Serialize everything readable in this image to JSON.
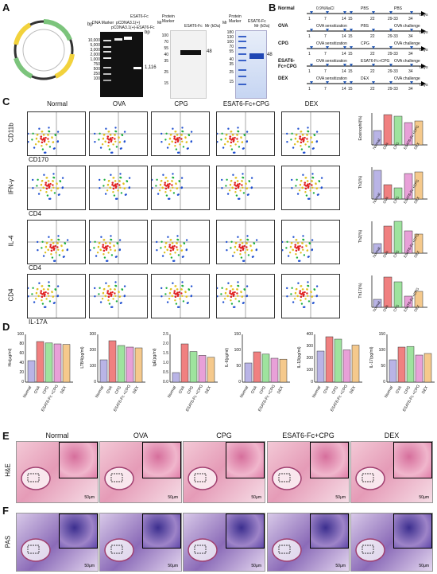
{
  "panels": {
    "A": "A",
    "B": "B",
    "C": "C",
    "D": "D",
    "E": "E",
    "F": "F"
  },
  "panelA": {
    "gel1_lanes": [
      "DNA Marker",
      "pCDNA3.1(+)",
      "pCDNA3.1(+)-ESAT6-Fc",
      "ESAT6-Fc"
    ],
    "gel1_bp_left": [
      "10,000",
      "5,000",
      "3,000",
      "2,000",
      "1,000",
      "750",
      "500",
      "250",
      "100"
    ],
    "gel1_bp_label": "bp",
    "gel1_band": "1,116",
    "gel1_bp_right": "bp",
    "gel2_header_mr": "Mr",
    "gel2_lanes": [
      "Protein Marker",
      "ESAT6-Fc"
    ],
    "gel2_unit": "Mr (kDa)",
    "gel2_markers": [
      "100",
      "70",
      "55",
      "40",
      "35",
      "25",
      "15"
    ],
    "gel2_band": "48",
    "gel3_header_mr": "Mr",
    "gel3_lanes": [
      "Protein Marker",
      "ESAT6-Fc"
    ],
    "gel3_unit": "Mr (kDa)",
    "gel3_markers": [
      "180",
      "130",
      "100",
      "70",
      "55",
      "40",
      "35",
      "25",
      "15"
    ],
    "gel3_band": "48"
  },
  "panelB": {
    "groups": [
      {
        "name": "Normal",
        "pre": "0.9%NaCl",
        "mid": "PBS",
        "post": "PBS"
      },
      {
        "name": "OVA",
        "pre": "OVA sensitization",
        "mid": "PBS",
        "post": "OVA challenge"
      },
      {
        "name": "CPG",
        "pre": "OVA sensitization",
        "mid": "CPG",
        "post": "OVA challenge"
      },
      {
        "name": "ESAT6-Fc+CPG",
        "pre": "OVA sensitization",
        "mid": "ESAT6-Fc+CPG",
        "post": "OVA challenge"
      },
      {
        "name": "DEX",
        "pre": "OVA sensitization",
        "mid": "DEX",
        "post": "OVA challenge"
      }
    ],
    "days": [
      "1",
      "7",
      "14",
      "15",
      "22",
      "29-33",
      "34"
    ],
    "days_label": "days"
  },
  "panelC": {
    "groups": [
      "Normal",
      "OVA",
      "CPG",
      "ESAT6-Fc+CPG",
      "DEX"
    ],
    "rows": [
      {
        "y": "CD11b",
        "x": "CD170",
        "bar_ylabel": "Eosinophil(%)"
      },
      {
        "y": "IFN-γ",
        "x": "CD4",
        "bar_ylabel": "Th1(%)"
      },
      {
        "y": "IL-4",
        "x": "CD4",
        "bar_ylabel": "Th2(%)"
      },
      {
        "y": "CD4",
        "x": "IL-17A",
        "bar_ylabel": "Th17(%)"
      }
    ],
    "bar_categories": [
      "Normal",
      "OVA",
      "CPG",
      "ESAT6-Fc +CPG",
      "DEX"
    ]
  },
  "panelD": {
    "charts": [
      {
        "ylabel": "His(μg/ml)",
        "values": [
          45,
          85,
          82,
          80,
          79
        ],
        "max": 100,
        "ticks": [
          "0",
          "20",
          "40",
          "60",
          "80",
          "100"
        ]
      },
      {
        "ylabel": "LTB4(pg/ml)",
        "values": [
          140,
          260,
          230,
          220,
          215
        ],
        "max": 300,
        "ticks": [
          "0",
          "100",
          "200",
          "300"
        ]
      },
      {
        "ylabel": "IgE(pg/ml)",
        "values": [
          0.5,
          2.0,
          1.6,
          1.4,
          1.3
        ],
        "max": 2.5,
        "ticks": [
          "0.0",
          "0.5",
          "1.0",
          "1.5",
          "2.0",
          "2.5"
        ]
      },
      {
        "ylabel": "IL-6(pg/ml)",
        "values": [
          60,
          95,
          88,
          75,
          72
        ],
        "max": 150,
        "ticks": [
          "0",
          "50",
          "100",
          "150"
        ]
      },
      {
        "ylabel": "IL-1β(pg/ml)",
        "values": [
          260,
          380,
          360,
          270,
          310
        ],
        "max": 400,
        "ticks": [
          "0",
          "100",
          "200",
          "300",
          "400"
        ]
      },
      {
        "ylabel": "IL-17(pg/ml)",
        "values": [
          70,
          110,
          112,
          85,
          90
        ],
        "max": 150,
        "ticks": [
          "0",
          "50",
          "100",
          "150"
        ]
      }
    ],
    "categories": [
      "Normal",
      "OVA",
      "CPG",
      "ESAT6-Fc +CPG",
      "DEX"
    ],
    "colors": [
      "#b9b4e6",
      "#f08080",
      "#9ee39e",
      "#e8a0d8",
      "#f5c98c"
    ]
  },
  "panelE": {
    "row_label": "H&E",
    "groups": [
      "Normal",
      "OVA",
      "CPG",
      "ESAT6-Fc+CPG",
      "DEX"
    ],
    "scale": "50μm"
  },
  "panelF": {
    "row_label": "PAS",
    "scale": "50μm"
  }
}
